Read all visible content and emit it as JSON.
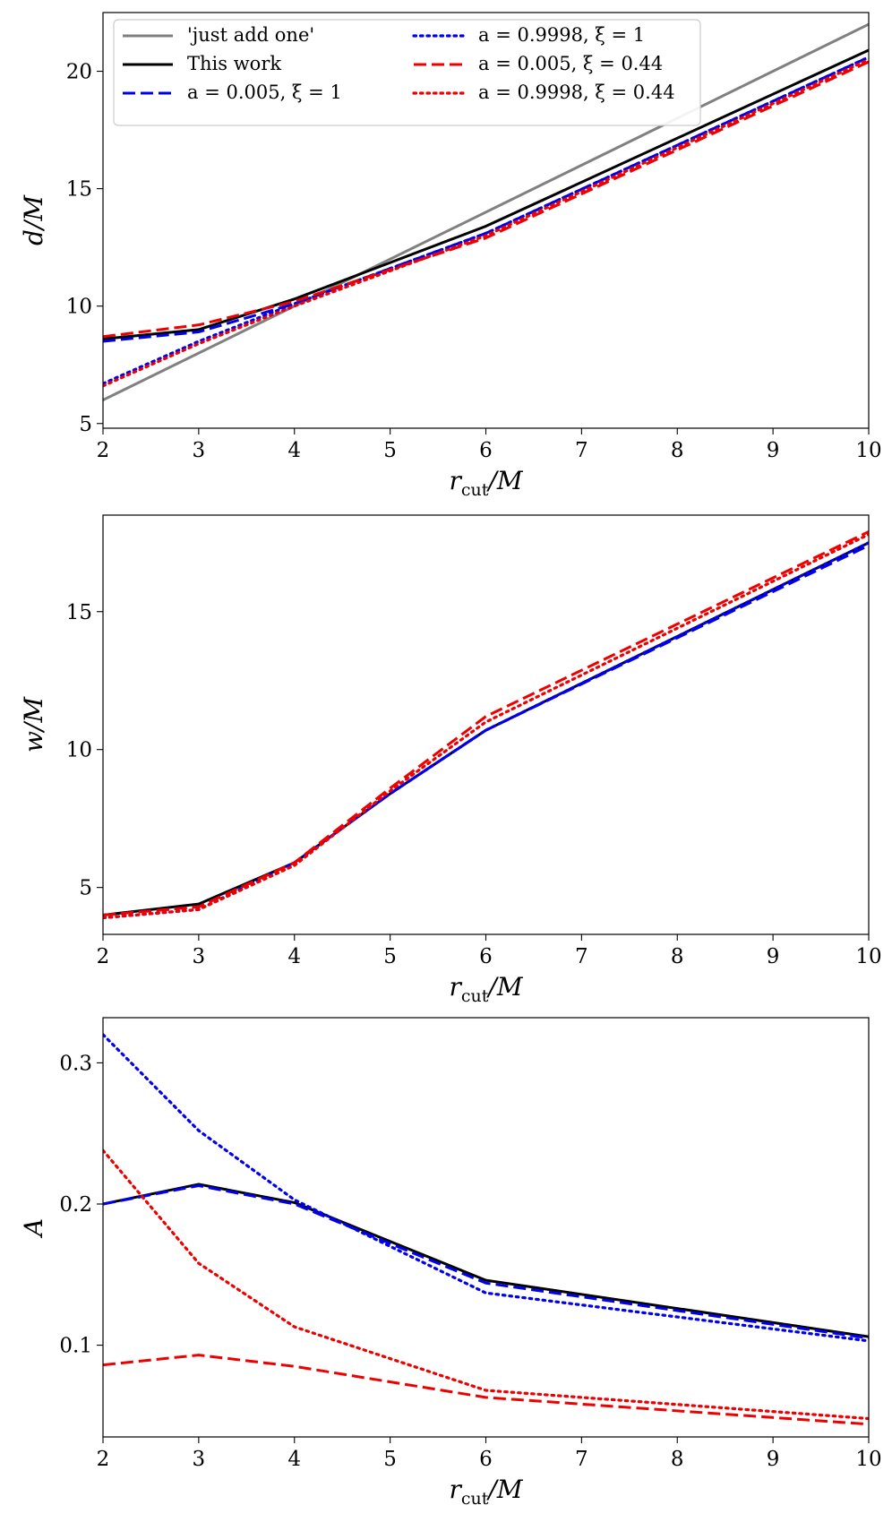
{
  "chart_data": [
    {
      "type": "line",
      "xlabel": "r_cut/M",
      "ylabel": "d/M",
      "xlim": [
        2,
        10
      ],
      "ylim": [
        4.8,
        22.5
      ],
      "xticks": [
        2,
        3,
        4,
        5,
        6,
        7,
        8,
        9,
        10
      ],
      "yticks": [
        5,
        10,
        15,
        20
      ],
      "grid": false,
      "legend": "top-left, two columns",
      "x": [
        2,
        3,
        4,
        6,
        10
      ],
      "series": [
        {
          "name": "'just add one'",
          "color": "#808080",
          "style": "solid",
          "x": [
            2,
            10
          ],
          "values": [
            6.0,
            22.0
          ]
        },
        {
          "name": "This work",
          "color": "#000000",
          "style": "solid",
          "values": [
            8.6,
            9.0,
            10.3,
            13.4,
            20.9
          ]
        },
        {
          "name": "a = 0.005, ξ = 1",
          "color": "#0000ee",
          "style": "dashed",
          "values": [
            8.5,
            8.9,
            10.1,
            13.1,
            20.6
          ]
        },
        {
          "name": "a = 0.9998, ξ = 1",
          "color": "#0000ee",
          "style": "dotted",
          "values": [
            6.7,
            8.5,
            10.1,
            13.1,
            20.6
          ]
        },
        {
          "name": "a = 0.005, ξ = 0.44",
          "color": "#ee0000",
          "style": "dashed",
          "values": [
            8.7,
            9.2,
            10.2,
            12.9,
            20.4
          ]
        },
        {
          "name": "a = 0.9998, ξ = 0.44",
          "color": "#ee0000",
          "style": "dotted",
          "values": [
            6.6,
            8.4,
            10.0,
            13.0,
            20.5
          ]
        }
      ]
    },
    {
      "type": "line",
      "xlabel": "r_cut/M",
      "ylabel": "w/M",
      "xlim": [
        2,
        10
      ],
      "ylim": [
        3.3,
        18.5
      ],
      "xticks": [
        2,
        3,
        4,
        5,
        6,
        7,
        8,
        9,
        10
      ],
      "yticks": [
        5,
        10,
        15
      ],
      "grid": false,
      "x": [
        2,
        3,
        4,
        5,
        6,
        10
      ],
      "series": [
        {
          "color": "#000000",
          "style": "solid",
          "values": [
            4.0,
            4.4,
            5.9,
            8.4,
            10.7,
            17.5
          ]
        },
        {
          "color": "#0000ee",
          "style": "dashed",
          "values": [
            4.0,
            4.3,
            5.9,
            8.4,
            10.7,
            17.4
          ]
        },
        {
          "color": "#0000ee",
          "style": "dotted",
          "values": [
            3.9,
            4.2,
            5.9,
            8.4,
            10.7,
            17.5
          ]
        },
        {
          "color": "#ee0000",
          "style": "dashed",
          "values": [
            4.0,
            4.3,
            5.9,
            8.6,
            11.2,
            17.9
          ]
        },
        {
          "color": "#ee0000",
          "style": "dotted",
          "values": [
            3.9,
            4.2,
            5.8,
            8.5,
            11.0,
            17.8
          ]
        }
      ]
    },
    {
      "type": "line",
      "xlabel": "r_cut/M",
      "ylabel": "A",
      "xlim": [
        2,
        10
      ],
      "ylim": [
        0.035,
        0.332
      ],
      "xticks": [
        2,
        3,
        4,
        5,
        6,
        7,
        8,
        9,
        10
      ],
      "yticks": [
        0.1,
        0.2,
        0.3
      ],
      "grid": false,
      "x": [
        2,
        3,
        4,
        6,
        10
      ],
      "series": [
        {
          "color": "#000000",
          "style": "solid",
          "values": [
            0.2,
            0.214,
            0.201,
            0.146,
            0.106
          ]
        },
        {
          "color": "#0000ee",
          "style": "dashed",
          "values": [
            0.2,
            0.213,
            0.2,
            0.144,
            0.105
          ]
        },
        {
          "color": "#0000ee",
          "style": "dotted",
          "values": [
            0.32,
            0.252,
            0.203,
            0.137,
            0.103
          ]
        },
        {
          "color": "#ee0000",
          "style": "dashed",
          "values": [
            0.086,
            0.093,
            0.085,
            0.063,
            0.044
          ]
        },
        {
          "color": "#ee0000",
          "style": "dotted",
          "values": [
            0.238,
            0.158,
            0.113,
            0.068,
            0.048
          ]
        }
      ]
    }
  ]
}
